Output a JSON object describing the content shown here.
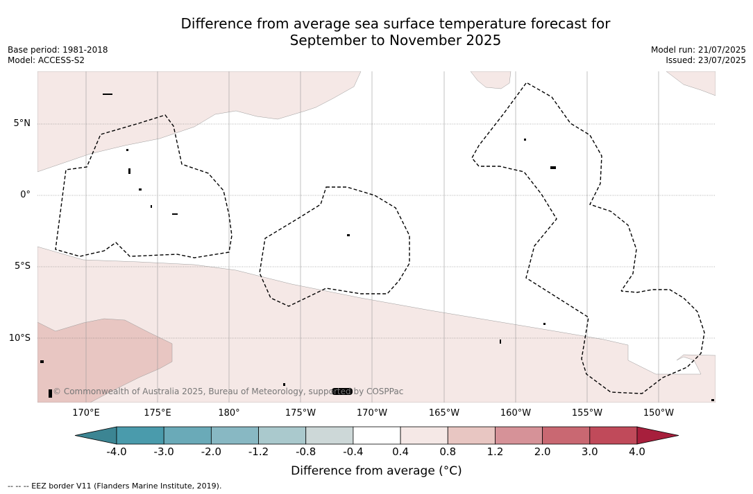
{
  "title_line1": "Difference from average sea surface temperature forecast for",
  "title_line2": "September to November 2025",
  "meta_left": {
    "base_period": "Base period: 1981-2018",
    "model": "Model: ACCESS-S2"
  },
  "meta_right": {
    "model_run": "Model run: 21/07/2025",
    "issued": "Issued: 23/07/2025"
  },
  "lat_labels": [
    "5°N",
    "0°",
    "5°S",
    "10°S"
  ],
  "lon_labels": [
    "170°E",
    "175°E",
    "180°",
    "175°W",
    "170°W",
    "165°W",
    "160°W",
    "155°W",
    "150°W"
  ],
  "copyright": "© Commonwealth of Australia 2025, Bureau of Meteorology, supported by COSPPac",
  "colorbar": {
    "ticks": [
      "-4.0",
      "-3.0",
      "-2.0",
      "-1.2",
      "-0.8",
      "-0.4",
      "0.4",
      "0.8",
      "1.2",
      "2.0",
      "3.0",
      "4.0"
    ],
    "colors": [
      "#4a9bac",
      "#6aaab8",
      "#88b8c3",
      "#aac9cd",
      "#cdd8d8",
      "#ffffff",
      "#f5e8e6",
      "#e8c6c2",
      "#d69298",
      "#c96872",
      "#c04a5a"
    ],
    "under_color": "#3c8593",
    "over_color": "#a71f3c",
    "title": "Difference from average ($^\\circ$C)",
    "title_display": "Difference from average (°C)"
  },
  "eez_note": "--  --  -- EEZ border V11 (Flanders Marine Institute, 2019).",
  "map_colors": {
    "light_warm": "#f5e8e6",
    "warm": "#e8c6c2",
    "border": "#999999",
    "grid": "#666666",
    "eez": "#000000"
  }
}
